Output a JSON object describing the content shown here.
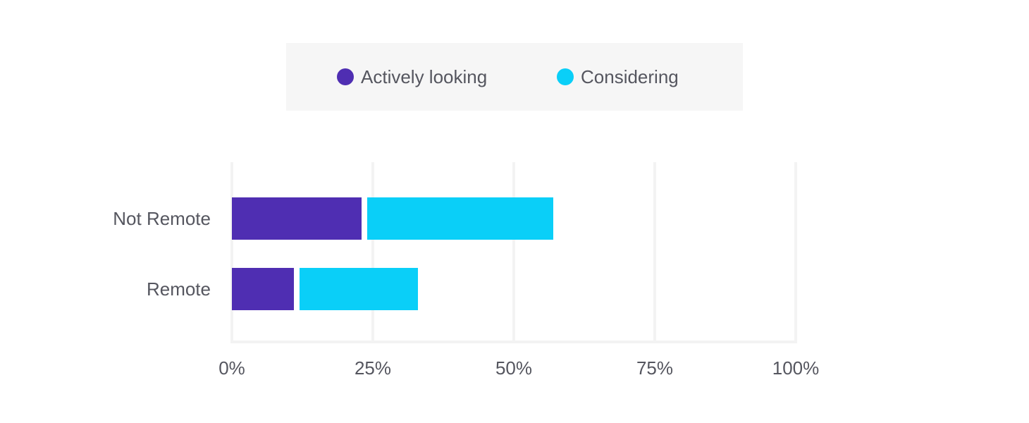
{
  "chart_data": {
    "type": "bar",
    "orientation": "horizontal",
    "stacked": true,
    "categories": [
      "Not Remote",
      "Remote"
    ],
    "series": [
      {
        "name": "Actively looking",
        "color": "#4f2eb2",
        "values": [
          23,
          11
        ]
      },
      {
        "name": "Considering",
        "color": "#0acff8",
        "values": [
          34,
          22
        ]
      }
    ],
    "xlim": [
      0,
      100
    ],
    "xticks": [
      0,
      25,
      50,
      75,
      100
    ],
    "xtick_labels": [
      "0%",
      "25%",
      "50%",
      "75%",
      "100%"
    ],
    "title": "",
    "xlabel": "",
    "ylabel": "",
    "grid": true,
    "legend_position": "top-center"
  }
}
